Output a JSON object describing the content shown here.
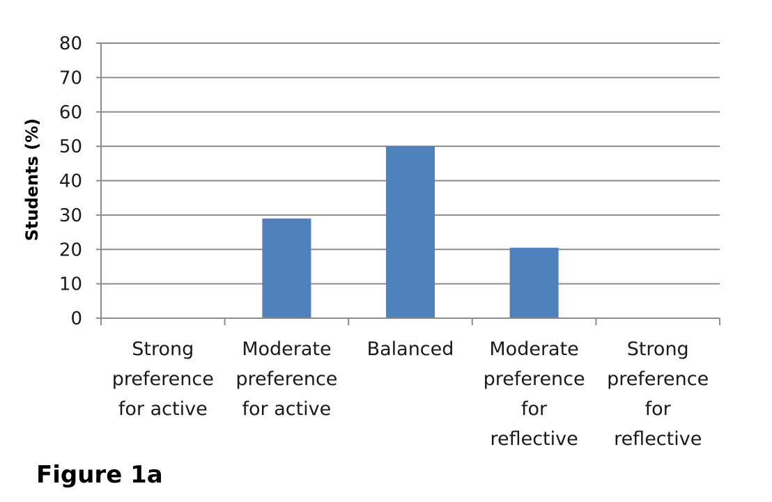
{
  "chart_data": {
    "type": "bar",
    "categories": [
      [
        "Strong",
        "preference",
        "for active"
      ],
      [
        "Moderate",
        "preference",
        "for active"
      ],
      [
        "Balanced"
      ],
      [
        "Moderate",
        "preference",
        "for",
        "reflective"
      ],
      [
        "Strong",
        "preference",
        "for",
        "reflective"
      ]
    ],
    "values": [
      0,
      29,
      50,
      20.5,
      0
    ],
    "ylabel": "Students (%)",
    "ylim": [
      0,
      80
    ],
    "yticks": [
      0,
      10,
      20,
      30,
      40,
      50,
      60,
      70,
      80
    ],
    "grid": true,
    "bar_color": "#4f81bd",
    "grid_color": "#8c8c8c"
  },
  "figure": {
    "caption": "Figure 1a"
  }
}
